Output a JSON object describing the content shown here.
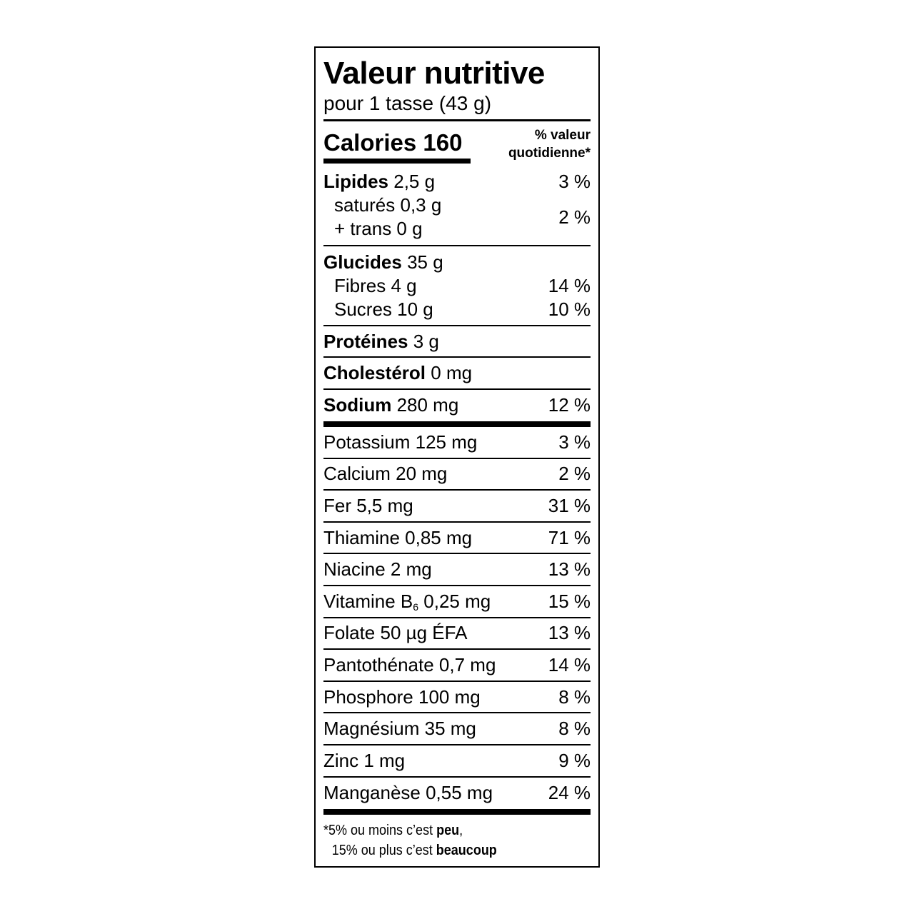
{
  "title": "Valeur nutritive",
  "serving": "pour 1 tasse (43 g)",
  "calories": {
    "label": "Calories 160",
    "dv_line1": "% valeur",
    "dv_line2": "quotidienne*"
  },
  "lipides": {
    "name": "Lipides",
    "amount": "2,5 g",
    "pct": "3 %",
    "sat": "saturés 0,3 g",
    "trans": "+ trans 0 g",
    "sat_trans_pct": "2 %"
  },
  "glucides": {
    "name": "Glucides",
    "amount": "35 g",
    "fibres": "Fibres 4 g",
    "fibres_pct": "14 %",
    "sucres": "Sucres 10 g",
    "sucres_pct": "10 %"
  },
  "proteines": {
    "name": "Protéines",
    "amount": "3 g"
  },
  "cholesterol": {
    "name": "Cholestérol",
    "amount": "0 mg"
  },
  "sodium": {
    "name": "Sodium",
    "amount": "280 mg",
    "pct": "12 %"
  },
  "micronutrients": [
    {
      "label": "Potassium 125 mg",
      "pct": "3 %"
    },
    {
      "label": "Calcium 20 mg",
      "pct": "2 %"
    },
    {
      "label": "Fer 5,5 mg",
      "pct": "31 %"
    },
    {
      "label": "Thiamine 0,85 mg",
      "pct": "71 %"
    },
    {
      "label": "Niacine 2 mg",
      "pct": "13 %"
    },
    {
      "label": "Vitamine B",
      "sub": "6",
      "label_after": " 0,25 mg",
      "pct": "15 %"
    },
    {
      "label": "Folate 50 µg ÉFA",
      "pct": "13 %"
    },
    {
      "label": "Pantothénate 0,7 mg",
      "pct": "14 %"
    },
    {
      "label": "Phosphore 100 mg",
      "pct": "8 %"
    },
    {
      "label": "Magnésium 35 mg",
      "pct": "8 %"
    },
    {
      "label": "Zinc 1 mg",
      "pct": "9 %"
    },
    {
      "label": "Manganèse 0,55 mg",
      "pct": "24 %"
    }
  ],
  "footnote": {
    "line1_pre": "*5% ou moins c’est ",
    "line1_bold": "peu",
    "line1_post": ",",
    "line2_pre": "15% ou plus c’est ",
    "line2_bold": "beaucoup"
  }
}
